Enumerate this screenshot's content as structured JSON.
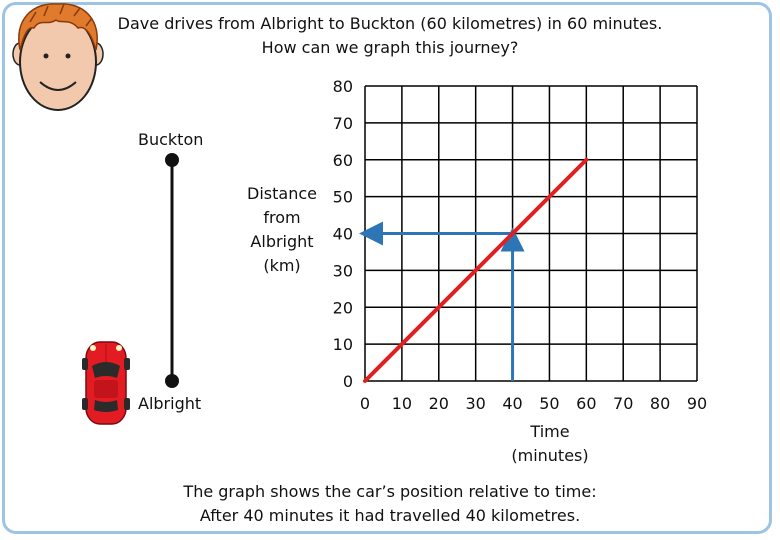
{
  "title": {
    "line1": "Dave drives from Albright to Buckton (60 kilometres) in 60 minutes.",
    "line2": "How can we graph this journey?"
  },
  "route": {
    "top_label": "Buckton",
    "bottom_label": "Albright"
  },
  "footer": {
    "line1": "The graph shows the car’s position relative to time:",
    "line2": "After 40 minutes it had travelled 40 kilometres."
  },
  "chart_data": {
    "type": "line",
    "xlabel_lines": [
      "Time",
      "(minutes)"
    ],
    "ylabel_lines": [
      "Distance",
      "from",
      "Albright",
      "(km)"
    ],
    "xlim": [
      0,
      90
    ],
    "ylim": [
      0,
      80
    ],
    "xticks": [
      0,
      10,
      20,
      30,
      40,
      50,
      60,
      70,
      80,
      90
    ],
    "yticks": [
      0,
      10,
      20,
      30,
      40,
      50,
      60,
      70,
      80
    ],
    "grid": true,
    "series": [
      {
        "x": [
          0,
          60
        ],
        "y": [
          0,
          60
        ],
        "color": "#e02020"
      }
    ],
    "annotations": [
      {
        "type": "arrow",
        "from": [
          40,
          0
        ],
        "to": [
          40,
          40
        ],
        "color": "#2e75b6"
      },
      {
        "type": "arrow",
        "from": [
          40,
          40
        ],
        "to": [
          0,
          40
        ],
        "color": "#2e75b6"
      }
    ]
  },
  "icons": {
    "person": "cartoon-boy-face",
    "car": "red-sports-car"
  },
  "colors": {
    "frame": "#9dc3e6",
    "line": "#e02020",
    "arrow": "#2e75b6",
    "car": "#e31b23"
  }
}
